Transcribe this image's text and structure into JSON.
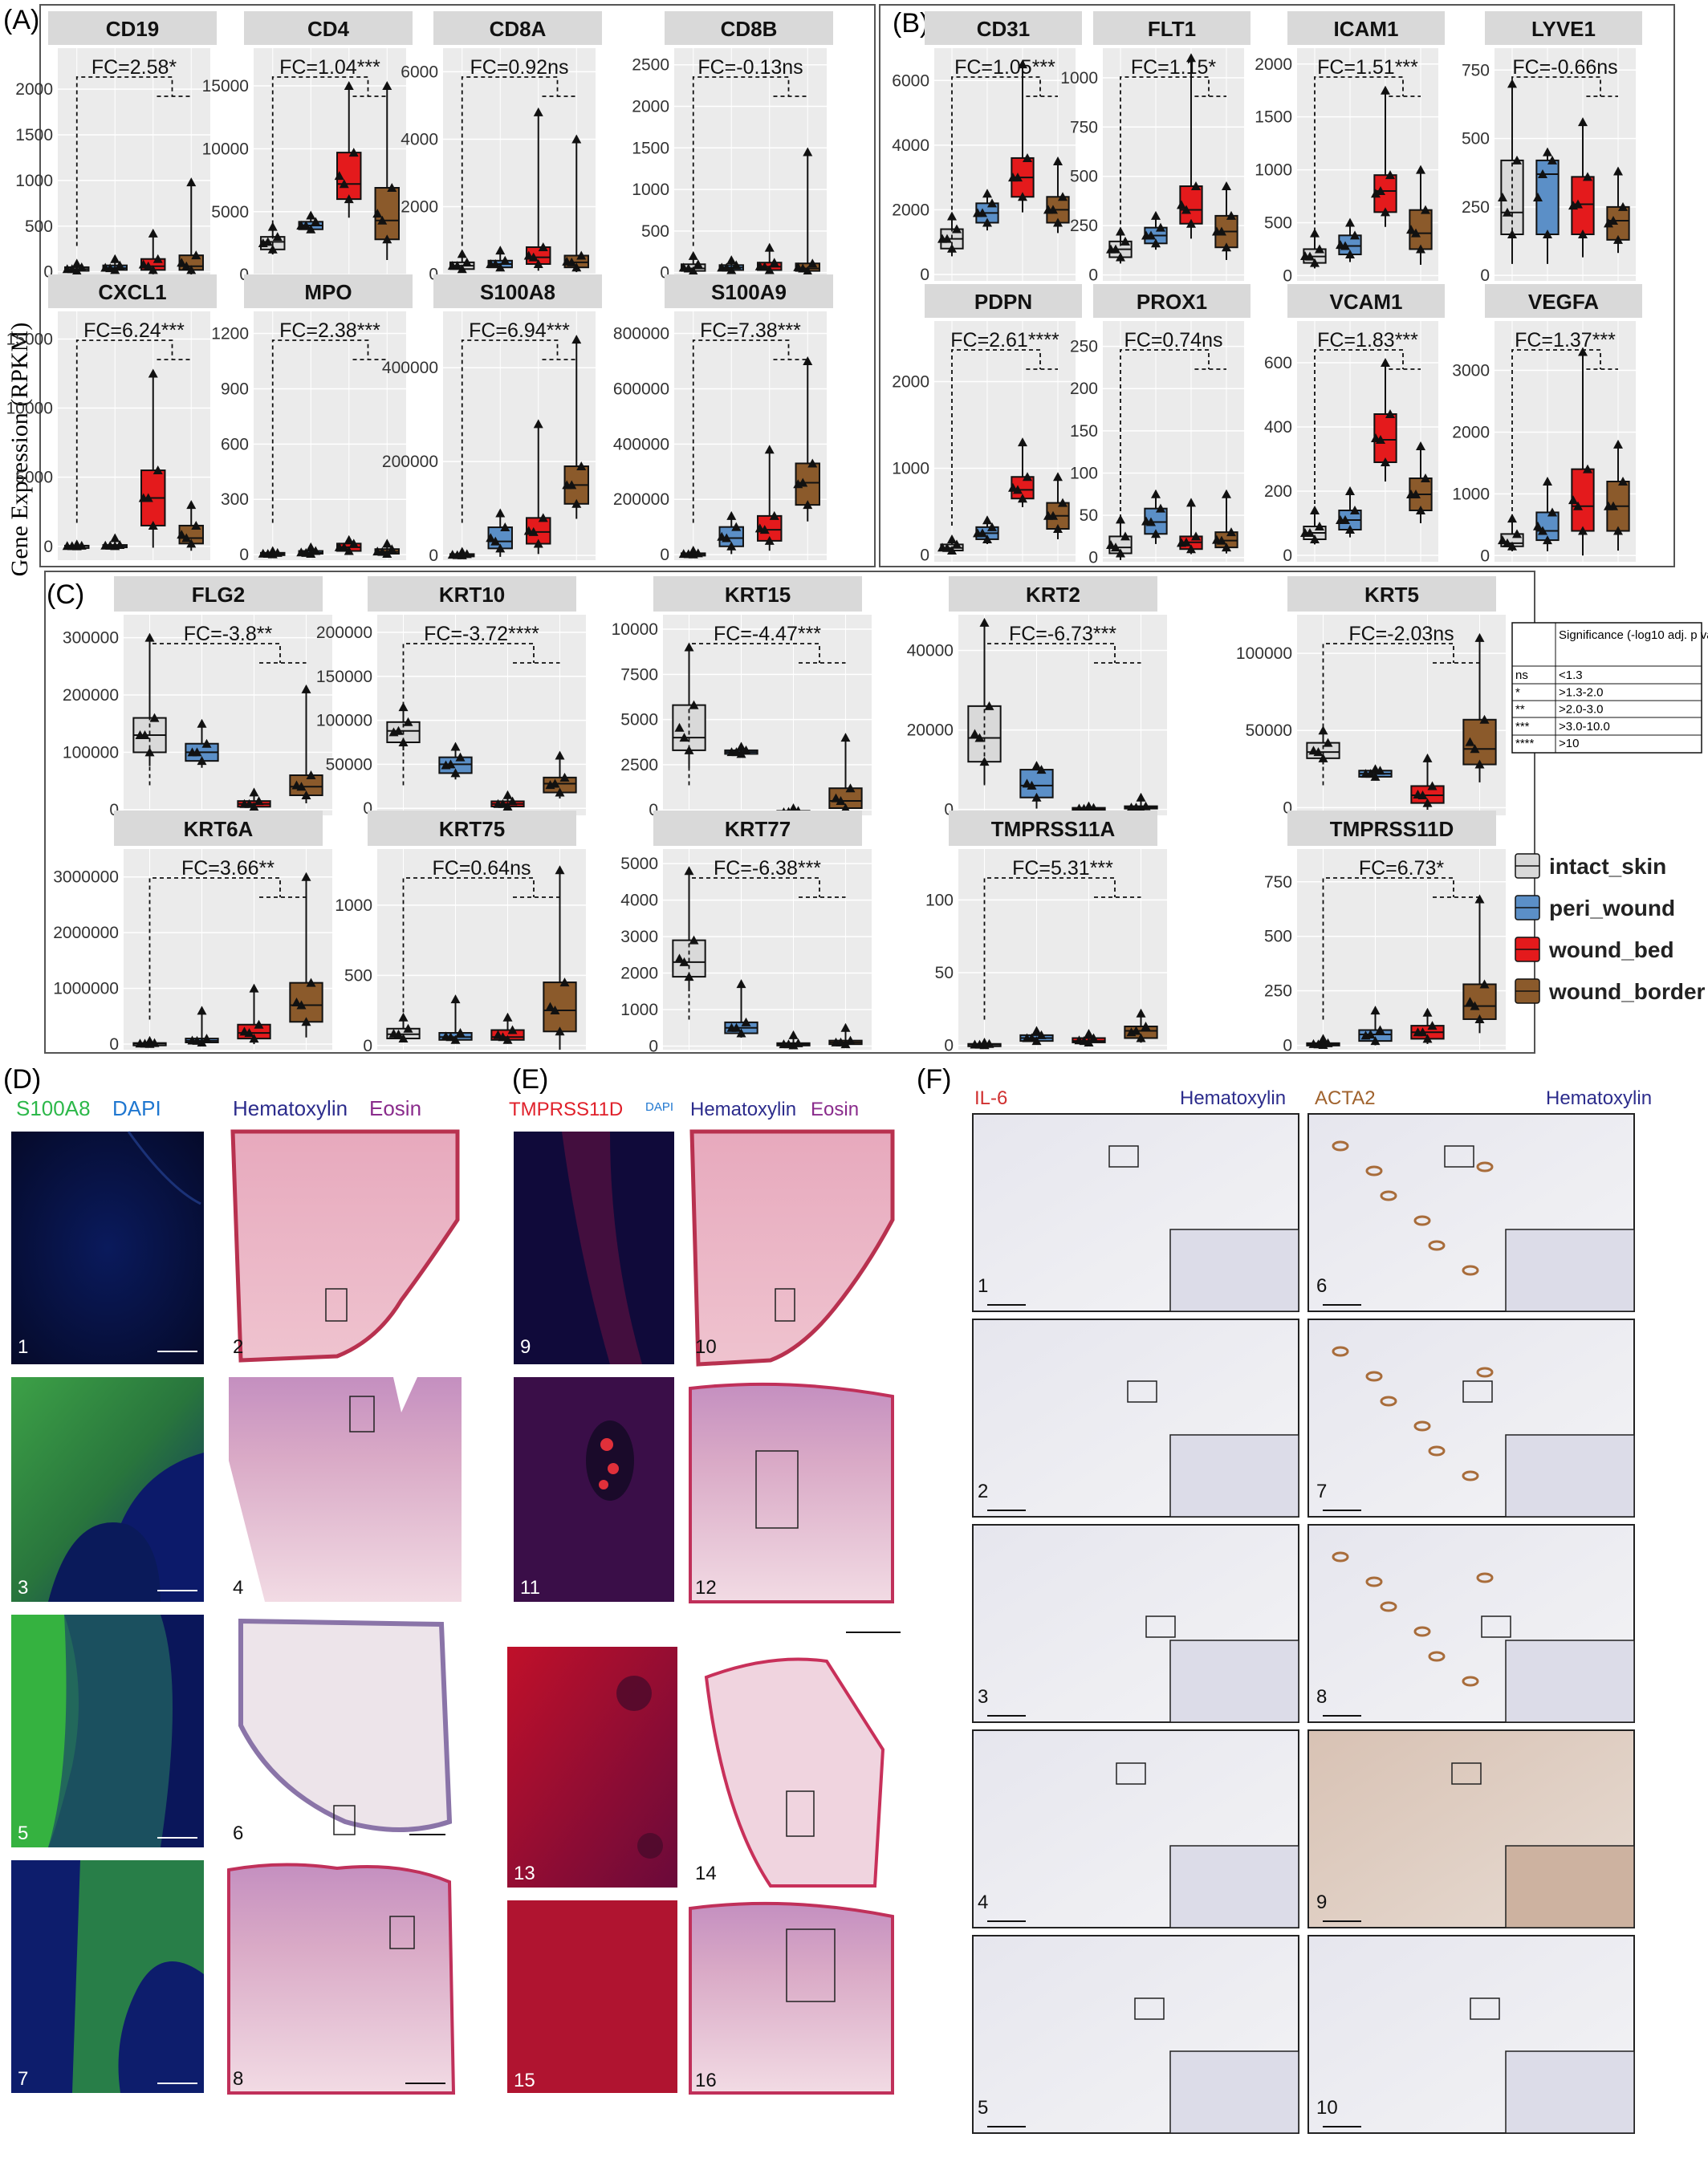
{
  "y_axis_title": "Gene Expression (RPKM)",
  "panel_labels": {
    "A": "(A)",
    "B": "(B)",
    "C": "(C)",
    "D": "(D)",
    "E": "(E)",
    "F": "(F)"
  },
  "legend": {
    "items": [
      {
        "label": "intact_skin",
        "color": "#d9d9d9"
      },
      {
        "label": "peri_wound",
        "color": "#5b8fc7"
      },
      {
        "label": "wound_bed",
        "color": "#e41a1c"
      },
      {
        "label": "wound_border",
        "color": "#8b5a2b"
      }
    ]
  },
  "significance_table": {
    "header": "Significance (-log10 adj. p value)",
    "rows": [
      {
        "mark": "ns",
        "range": "<1.3"
      },
      {
        "mark": "*",
        "range": ">1.3-2.0"
      },
      {
        "mark": "**",
        "range": ">2.0-3.0"
      },
      {
        "mark": "***",
        "range": ">3.0-10.0"
      },
      {
        "mark": "****",
        "range": ">10"
      }
    ]
  },
  "colors": {
    "intact_skin": "#d9d9d9",
    "peri_wound": "#5b8fc7",
    "wound_bed": "#e41a1c",
    "wound_border": "#8b5a2b",
    "panel_bg": "#ebebeb",
    "strip_bg": "#d9d9d9"
  },
  "chart_data": [
    {
      "type": "box",
      "panel": "A",
      "title": "CD19",
      "fc": "FC=2.58*",
      "yticks": [
        0,
        500,
        1000,
        1500,
        2000
      ],
      "ylim": [
        -100,
        2450
      ],
      "medians": [
        30,
        40,
        60,
        60
      ],
      "q1": [
        10,
        20,
        20,
        20
      ],
      "q3": [
        50,
        70,
        140,
        180
      ],
      "whisker_hi": [
        90,
        140,
        420,
        980
      ]
    },
    {
      "type": "box",
      "panel": "A",
      "title": "CD4",
      "fc": "FC=1.04***",
      "yticks": [
        0,
        5000,
        10000,
        15000
      ],
      "ylim": [
        -500,
        18000
      ],
      "medians": [
        2600,
        3900,
        7200,
        4300
      ],
      "q1": [
        2000,
        3600,
        6000,
        2800
      ],
      "q3": [
        3000,
        4200,
        9700,
        6900
      ],
      "whisker_hi": [
        3800,
        4700,
        15000,
        15000
      ]
    },
    {
      "type": "box",
      "panel": "A",
      "title": "CD8A",
      "fc": "FC=0.92ns",
      "yticks": [
        0,
        2000,
        4000,
        6000
      ],
      "ylim": [
        -200,
        6700
      ],
      "medians": [
        250,
        300,
        500,
        350
      ],
      "q1": [
        150,
        200,
        300,
        200
      ],
      "q3": [
        350,
        400,
        800,
        550
      ],
      "whisker_hi": [
        600,
        700,
        4800,
        4000
      ]
    },
    {
      "type": "box",
      "panel": "A",
      "title": "CD8B",
      "fc": "FC=-0.13ns",
      "yticks": [
        0,
        500,
        1000,
        1500,
        2000,
        2500
      ],
      "ylim": [
        -100,
        2700
      ],
      "medians": [
        50,
        60,
        70,
        50
      ],
      "q1": [
        20,
        30,
        30,
        20
      ],
      "q3": [
        100,
        90,
        120,
        110
      ],
      "whisker_hi": [
        200,
        150,
        300,
        1450
      ]
    },
    {
      "type": "box",
      "panel": "A",
      "title": "CXCL1",
      "fc": "FC=6.24***",
      "yticks": [
        0,
        5000,
        10000,
        15000
      ],
      "ylim": [
        -1000,
        17000
      ],
      "medians": [
        20,
        50,
        3500,
        600
      ],
      "q1": [
        10,
        20,
        1500,
        200
      ],
      "q3": [
        50,
        100,
        5500,
        1500
      ],
      "whisker_hi": [
        150,
        600,
        12500,
        3000
      ]
    },
    {
      "type": "box",
      "panel": "A",
      "title": "MPO",
      "fc": "FC=2.38***",
      "yticks": [
        0,
        300,
        600,
        900,
        1200
      ],
      "ylim": [
        -30,
        1320
      ],
      "medians": [
        5,
        10,
        40,
        15
      ],
      "q1": [
        2,
        5,
        20,
        5
      ],
      "q3": [
        10,
        20,
        60,
        30
      ],
      "whisker_hi": [
        20,
        40,
        80,
        60
      ]
    },
    {
      "type": "box",
      "panel": "A",
      "title": "S100A8",
      "fc": "FC=6.94***",
      "yticks": [
        0,
        200000,
        400000
      ],
      "ylim": [
        -10000,
        520000
      ],
      "medians": [
        1000,
        30000,
        50000,
        150000
      ],
      "q1": [
        500,
        15000,
        25000,
        110000
      ],
      "q3": [
        3000,
        60000,
        80000,
        190000
      ],
      "whisker_hi": [
        8000,
        90000,
        280000,
        460000
      ]
    },
    {
      "type": "box",
      "panel": "A",
      "title": "S100A9",
      "fc": "FC=7.38***",
      "yticks": [
        0,
        200000,
        400000,
        600000,
        800000
      ],
      "ylim": [
        -20000,
        880000
      ],
      "medians": [
        2000,
        60000,
        90000,
        260000
      ],
      "q1": [
        1000,
        30000,
        50000,
        180000
      ],
      "q3": [
        5000,
        100000,
        140000,
        330000
      ],
      "whisker_hi": [
        15000,
        140000,
        380000,
        700000
      ]
    },
    {
      "type": "box",
      "panel": "B",
      "title": "CD31",
      "fc": "FC=1.05***",
      "yticks": [
        0,
        2000,
        4000,
        6000
      ],
      "ylim": [
        -200,
        7000
      ],
      "medians": [
        1100,
        1900,
        3000,
        2000
      ],
      "q1": [
        800,
        1600,
        2400,
        1600
      ],
      "q3": [
        1400,
        2200,
        3600,
        2400
      ],
      "whisker_hi": [
        1800,
        2500,
        6500,
        3500
      ]
    },
    {
      "type": "box",
      "panel": "B",
      "title": "FLT1",
      "fc": "FC=1.15*",
      "yticks": [
        0,
        250,
        500,
        750,
        1000
      ],
      "ylim": [
        -30,
        1150
      ],
      "medians": [
        130,
        200,
        330,
        220
      ],
      "q1": [
        90,
        160,
        260,
        140
      ],
      "q3": [
        170,
        240,
        450,
        300
      ],
      "whisker_hi": [
        220,
        300,
        1100,
        450
      ]
    },
    {
      "type": "box",
      "panel": "B",
      "title": "ICAM1",
      "fc": "FC=1.51***",
      "yticks": [
        0,
        500,
        1000,
        1500,
        2000
      ],
      "ylim": [
        -50,
        2150
      ],
      "medians": [
        180,
        280,
        800,
        400
      ],
      "q1": [
        120,
        200,
        600,
        250
      ],
      "q3": [
        250,
        380,
        950,
        620
      ],
      "whisker_hi": [
        400,
        500,
        1750,
        1000
      ]
    },
    {
      "type": "box",
      "panel": "B",
      "title": "LYVE1",
      "fc": "FC=-0.66ns",
      "yticks": [
        0,
        250,
        500,
        750
      ],
      "ylim": [
        -20,
        830
      ],
      "medians": [
        230,
        370,
        260,
        200
      ],
      "q1": [
        150,
        150,
        150,
        130
      ],
      "q3": [
        420,
        420,
        360,
        250
      ],
      "whisker_hi": [
        700,
        450,
        560,
        380
      ]
    },
    {
      "type": "box",
      "panel": "B",
      "title": "PDPN",
      "fc": "FC=2.61****",
      "yticks": [
        0,
        1000,
        2000
      ],
      "ylim": [
        -80,
        2700
      ],
      "medians": [
        80,
        250,
        750,
        450
      ],
      "q1": [
        50,
        180,
        650,
        300
      ],
      "q3": [
        120,
        320,
        900,
        600
      ],
      "whisker_hi": [
        180,
        400,
        1300,
        900
      ]
    },
    {
      "type": "box",
      "panel": "B",
      "title": "PROX1",
      "fc": "FC=0.74ns",
      "yticks": [
        0,
        50,
        100,
        150,
        200,
        250
      ],
      "ylim": [
        -5,
        280
      ],
      "medians": [
        12,
        42,
        18,
        20
      ],
      "q1": [
        5,
        28,
        10,
        12
      ],
      "q3": [
        25,
        58,
        25,
        30
      ],
      "whisker_hi": [
        45,
        75,
        65,
        75
      ]
    },
    {
      "type": "box",
      "panel": "B",
      "title": "VCAM1",
      "fc": "FC=1.83***",
      "yticks": [
        0,
        200,
        400,
        600
      ],
      "ylim": [
        -20,
        730
      ],
      "medians": [
        70,
        110,
        360,
        190
      ],
      "q1": [
        50,
        80,
        290,
        140
      ],
      "q3": [
        90,
        140,
        440,
        240
      ],
      "whisker_hi": [
        140,
        200,
        600,
        340
      ]
    },
    {
      "type": "box",
      "panel": "B",
      "title": "VEGFA",
      "fc": "FC=1.37***",
      "yticks": [
        0,
        1000,
        2000,
        3000
      ],
      "ylim": [
        -100,
        3800
      ],
      "medians": [
        200,
        400,
        800,
        800
      ],
      "q1": [
        150,
        250,
        400,
        400
      ],
      "q3": [
        350,
        700,
        1400,
        1200
      ],
      "whisker_hi": [
        600,
        1200,
        3300,
        1800
      ]
    },
    {
      "type": "box",
      "panel": "C",
      "title": "FLG2",
      "fc": "FC=-3.8**",
      "yticks": [
        0,
        100000,
        200000,
        300000
      ],
      "ylim": [
        -10000,
        340000
      ],
      "medians": [
        130000,
        100000,
        10000,
        40000
      ],
      "q1": [
        100000,
        85000,
        5000,
        25000
      ],
      "q3": [
        160000,
        115000,
        15000,
        60000
      ],
      "whisker_hi": [
        300000,
        150000,
        30000,
        210000
      ]
    },
    {
      "type": "box",
      "panel": "C",
      "title": "KRT10",
      "fc": "FC=-3.72****",
      "yticks": [
        0,
        50000,
        100000,
        150000,
        200000
      ],
      "ylim": [
        -8000,
        220000
      ],
      "medians": [
        88000,
        50000,
        5000,
        28000
      ],
      "q1": [
        75000,
        40000,
        2000,
        18000
      ],
      "q3": [
        98000,
        58000,
        8000,
        35000
      ],
      "whisker_hi": [
        115000,
        70000,
        15000,
        60000
      ]
    },
    {
      "type": "box",
      "panel": "C",
      "title": "KRT15",
      "fc": "FC=-4.47***",
      "yticks": [
        0,
        2500,
        5000,
        7500,
        10000
      ],
      "ylim": [
        -300,
        10800
      ],
      "medians": [
        4000,
        3200,
        -100,
        500
      ],
      "q1": [
        3300,
        3100,
        -200,
        100
      ],
      "q3": [
        5800,
        3300,
        -50,
        1200
      ],
      "whisker_hi": [
        9000,
        3500,
        100,
        4000
      ]
    },
    {
      "type": "box",
      "panel": "C",
      "title": "KRT2",
      "fc": "FC=-6.73***",
      "yticks": [
        0,
        20000,
        40000
      ],
      "ylim": [
        -1500,
        49000
      ],
      "medians": [
        18000,
        6000,
        200,
        500
      ],
      "q1": [
        12000,
        3000,
        100,
        200
      ],
      "q3": [
        26000,
        10000,
        400,
        800
      ],
      "whisker_hi": [
        47000,
        11000,
        800,
        3000
      ]
    },
    {
      "type": "box",
      "panel": "C",
      "title": "KRT5",
      "fc": "FC=-2.03ns",
      "yticks": [
        0,
        50000,
        100000
      ],
      "ylim": [
        -5000,
        125000
      ],
      "medians": [
        36000,
        22000,
        8000,
        38000
      ],
      "q1": [
        32000,
        20000,
        3000,
        28000
      ],
      "q3": [
        42000,
        24000,
        14000,
        57000
      ],
      "whisker_hi": [
        50000,
        25000,
        32000,
        110000
      ]
    },
    {
      "type": "box",
      "panel": "C",
      "title": "KRT6A",
      "fc": "FC=3.66**",
      "yticks": [
        0,
        1000000,
        2000000,
        3000000
      ],
      "ylim": [
        -100000,
        3500000
      ],
      "medians": [
        10000,
        60000,
        200000,
        700000
      ],
      "q1": [
        5000,
        30000,
        100000,
        400000
      ],
      "q3": [
        20000,
        100000,
        350000,
        1100000
      ],
      "whisker_hi": [
        60000,
        600000,
        1000000,
        3000000
      ]
    },
    {
      "type": "box",
      "panel": "C",
      "title": "KRT75",
      "fc": "FC=0.64ns",
      "yticks": [
        0,
        500,
        1000
      ],
      "ylim": [
        -30,
        1400
      ],
      "medians": [
        80,
        60,
        60,
        250
      ],
      "q1": [
        50,
        40,
        40,
        100
      ],
      "q3": [
        120,
        90,
        110,
        450
      ],
      "whisker_hi": [
        200,
        330,
        200,
        1250
      ]
    },
    {
      "type": "box",
      "panel": "C",
      "title": "KRT77",
      "fc": "FC=-6.38***",
      "yticks": [
        0,
        1000,
        2000,
        3000,
        4000,
        5000
      ],
      "ylim": [
        -100,
        5400
      ],
      "medians": [
        2300,
        500,
        50,
        100
      ],
      "q1": [
        1900,
        350,
        20,
        50
      ],
      "q3": [
        2900,
        650,
        80,
        150
      ],
      "whisker_hi": [
        4800,
        1700,
        300,
        500
      ]
    },
    {
      "type": "box",
      "panel": "C",
      "title": "TMPRSS11A",
      "fc": "FC=5.31***",
      "yticks": [
        0,
        50,
        100
      ],
      "ylim": [
        -3,
        135
      ],
      "medians": [
        0.5,
        5,
        3,
        10
      ],
      "q1": [
        0.2,
        3,
        2,
        5
      ],
      "q3": [
        1,
        7,
        5,
        13
      ],
      "whisker_hi": [
        2,
        10,
        8,
        22
      ]
    },
    {
      "type": "box",
      "panel": "C",
      "title": "TMPRSS11D",
      "fc": "FC=6.73*",
      "yticks": [
        0,
        250,
        500,
        750
      ],
      "ylim": [
        -20,
        900
      ],
      "medians": [
        5,
        50,
        60,
        180
      ],
      "q1": [
        2,
        20,
        30,
        120
      ],
      "q3": [
        10,
        70,
        90,
        280
      ],
      "whisker_hi": [
        30,
        160,
        150,
        670
      ]
    }
  ],
  "micro_D": {
    "header_left": [
      {
        "text": "S100A8",
        "color": "#2db84a"
      },
      {
        "text": "DAPI",
        "color": "#1f77d0"
      }
    ],
    "header_right": [
      {
        "text": "Hematoxylin",
        "color": "#2c2c8c"
      },
      {
        "text": "Eosin",
        "color": "#8a2c8c"
      }
    ],
    "numbers": [
      "1",
      "2",
      "3",
      "4",
      "5",
      "6",
      "7",
      "8"
    ]
  },
  "micro_E": {
    "header": [
      {
        "text": "TMPRSS11D",
        "color": "#e0202a"
      },
      {
        "text": "DAPI",
        "color": "#1f77d0"
      },
      {
        "text": "Hematoxylin",
        "color": "#2c2c8c"
      },
      {
        "text": "Eosin",
        "color": "#8a2c8c"
      }
    ],
    "numbers": [
      "9",
      "10",
      "11",
      "12",
      "13",
      "14",
      "15",
      "16"
    ]
  },
  "micro_F": {
    "header_left": [
      {
        "text": "IL-6",
        "color": "#d03030"
      },
      {
        "text": "Hematoxylin",
        "color": "#2c2c8c"
      }
    ],
    "header_right": [
      {
        "text": "ACTA2",
        "color": "#a0622d"
      },
      {
        "text": "Hematoxylin",
        "color": "#2c2c8c"
      }
    ],
    "numbers": [
      "1",
      "2",
      "3",
      "4",
      "5",
      "6",
      "7",
      "8",
      "9",
      "10"
    ]
  }
}
